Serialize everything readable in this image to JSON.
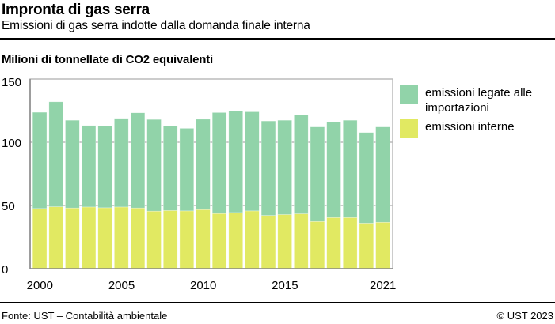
{
  "header": {
    "title": "Impronta di gas serra",
    "subtitle": "Emissioni di gas serra indotte dalla domanda finale interna"
  },
  "footer": {
    "source": "Fonte: UST – Contabilità ambientale",
    "copyright": "© UST 2023"
  },
  "chart_data": {
    "type": "bar",
    "stacked": true,
    "title": "Impronta di gas serra",
    "subtitle": "Emissioni di gas serra indotte dalla domanda finale interna",
    "ylabel": "Milioni di tonnellate di CO2 equivalenti",
    "xlabel": "",
    "ylim": [
      0,
      150
    ],
    "yticks": [
      0,
      50,
      100,
      150
    ],
    "xtick_labels": [
      "2000",
      "2005",
      "2010",
      "2015",
      "2021"
    ],
    "grid": true,
    "legend_position": "right",
    "categories": [
      "2000",
      "2001",
      "2002",
      "2003",
      "2004",
      "2005",
      "2006",
      "2007",
      "2008",
      "2009",
      "2010",
      "2011",
      "2012",
      "2013",
      "2014",
      "2015",
      "2016",
      "2017",
      "2018",
      "2019",
      "2020",
      "2021"
    ],
    "series": [
      {
        "name": "emissioni interne",
        "color": "#e1e962",
        "values": [
          47.6,
          49.0,
          48.0,
          48.8,
          48.2,
          48.8,
          48.0,
          45.5,
          46.0,
          45.7,
          46.7,
          43.6,
          44.4,
          45.7,
          42.1,
          42.8,
          43.4,
          37.3,
          40.4,
          40.4,
          36.0,
          36.7
        ]
      },
      {
        "name": "emissioni legate alle importazioni",
        "color": "#91d3a9",
        "values": [
          76.1,
          83.0,
          69.4,
          64.4,
          64.8,
          70.1,
          75.3,
          72.5,
          67.0,
          65.3,
          71.5,
          79.9,
          80.3,
          78.4,
          74.7,
          74.6,
          78.2,
          74.8,
          75.7,
          77.0,
          71.7,
          75.4
        ]
      }
    ]
  }
}
